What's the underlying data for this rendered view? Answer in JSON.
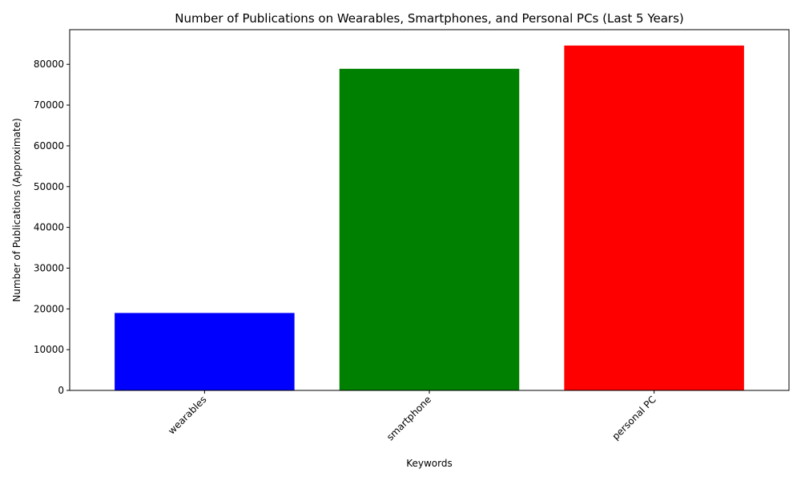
{
  "chart_data": {
    "type": "bar",
    "title": "Number of Publications on Wearables, Smartphones, and Personal PCs (Last 5 Years)",
    "xlabel": "Keywords",
    "ylabel": "Number of Publications (Approximate)",
    "categories": [
      "wearables",
      "smartphone",
      "personal PC"
    ],
    "values": [
      19000,
      78900,
      84600
    ],
    "colors": [
      "#0000ff",
      "#008000",
      "#ff0000"
    ],
    "ylim": [
      0,
      88500
    ],
    "yticks": [
      0,
      10000,
      20000,
      30000,
      40000,
      50000,
      60000,
      70000,
      80000
    ],
    "grid": false,
    "legend": "none"
  }
}
